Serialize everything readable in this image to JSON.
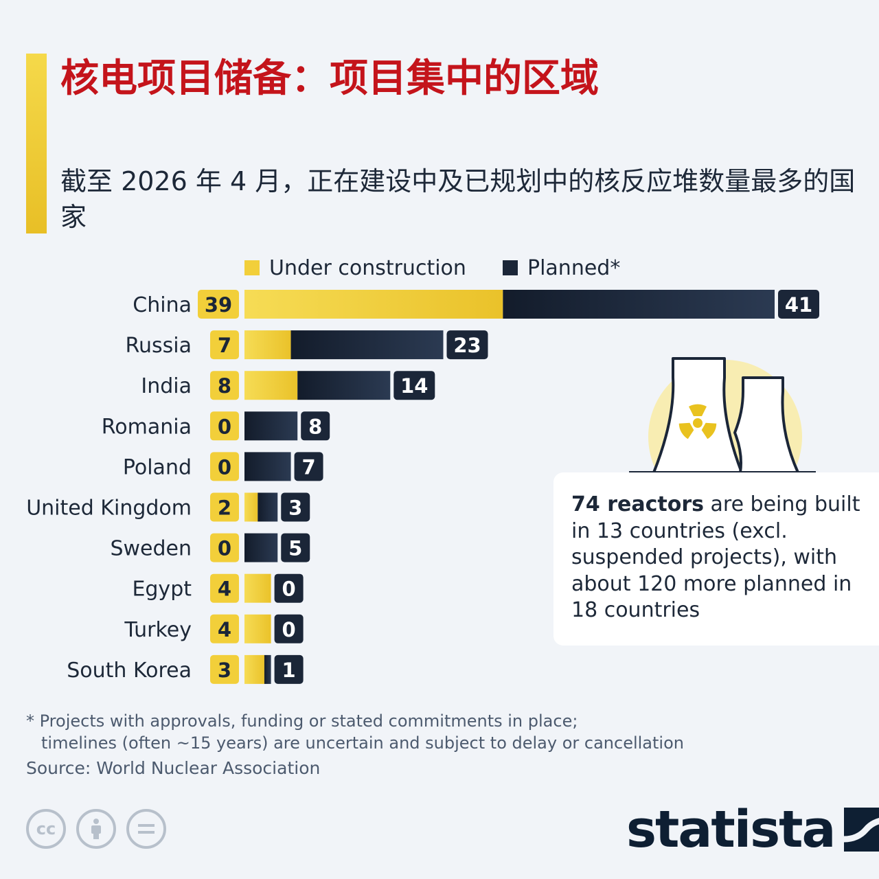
{
  "header": {
    "title": "核电项目储备：项目集中的区域",
    "subtitle": "截至 2026 年 4 月，正在建设中及已规划中的核反应堆数量最多的国家"
  },
  "chart_data": {
    "type": "bar",
    "orientation": "horizontal",
    "stacked": true,
    "categories": [
      "China",
      "Russia",
      "India",
      "Romania",
      "Poland",
      "United Kingdom",
      "Sweden",
      "Egypt",
      "Turkey",
      "South Korea"
    ],
    "series": [
      {
        "name": "Under construction",
        "color": "#f2cf3a",
        "values": [
          39,
          7,
          8,
          0,
          0,
          2,
          0,
          4,
          4,
          3
        ]
      },
      {
        "name": "Planned*",
        "color": "#1b2638",
        "values": [
          41,
          23,
          14,
          8,
          7,
          3,
          5,
          0,
          0,
          1
        ]
      }
    ],
    "legend_position": "top",
    "grid": false
  },
  "callout": {
    "bold": "74 reactors",
    "text": " are being built in 13 countries (excl. suspended projects), with about 120 more planned in 18 countries"
  },
  "footnote": {
    "line1": "* Projects with approvals, funding or stated commitments in place;",
    "line2": "timelines (often ~15 years) are uncertain and subject to delay or cancellation"
  },
  "source": "Source: World Nuclear Association",
  "brand": {
    "name": "statista",
    "color": "#0e1f33"
  },
  "license_icons": [
    "cc-icon",
    "by-icon",
    "nd-icon"
  ],
  "colors": {
    "accent": "#f2cf3a",
    "title": "#c4141b",
    "dark": "#1b2638"
  }
}
